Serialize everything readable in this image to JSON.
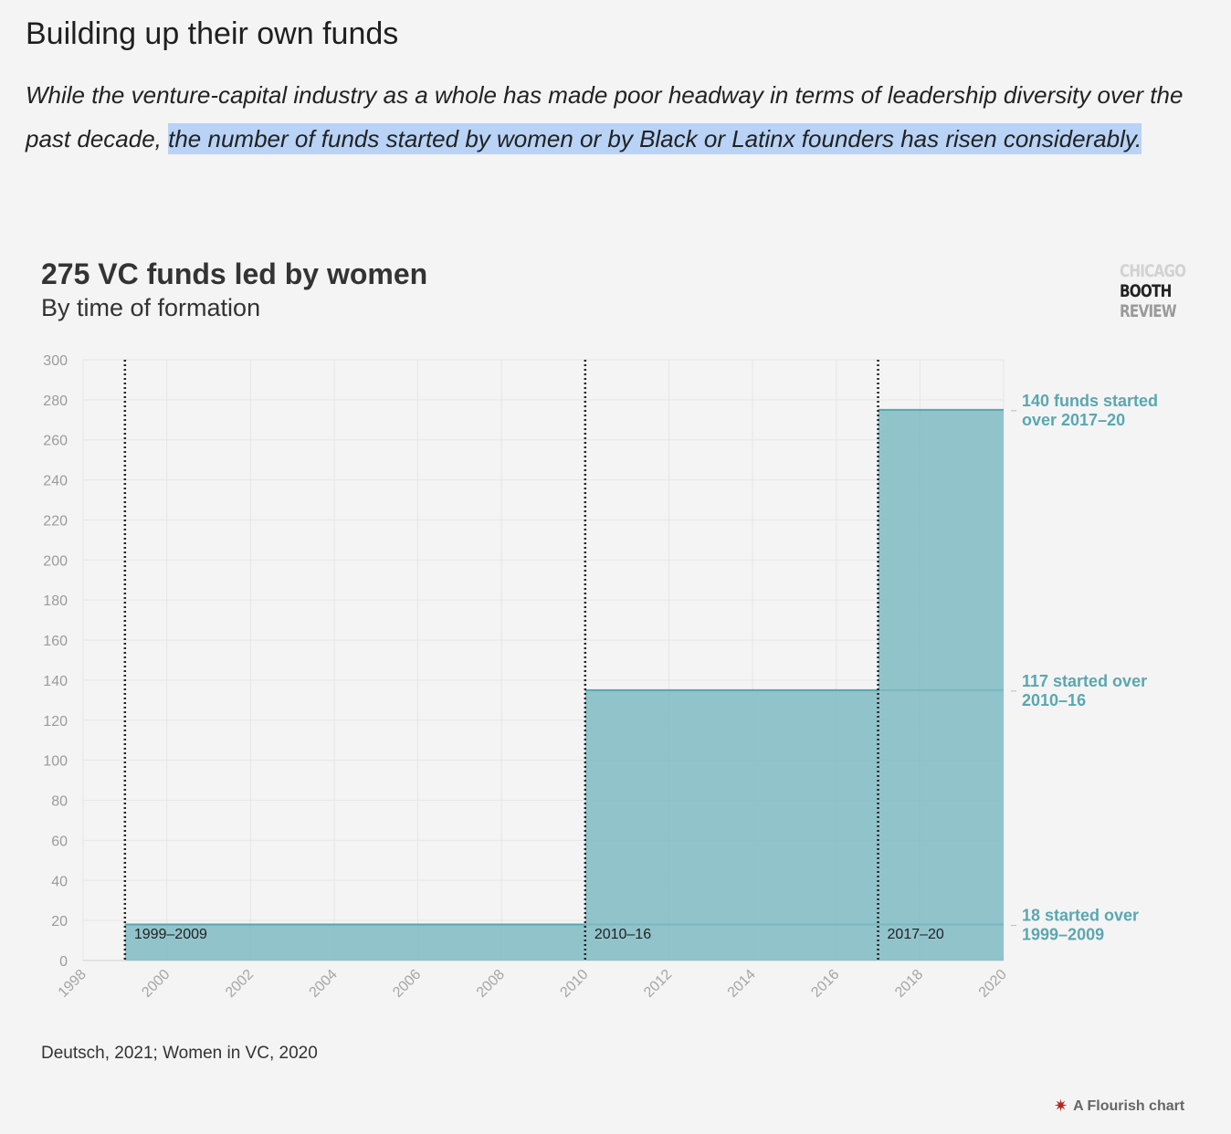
{
  "article": {
    "title": "Building up their own funds",
    "lede_plain": "While the venture-capital industry as a whole has made poor headway in terms of leadership diversity over the past decade, ",
    "lede_highlight": "the number of funds started by women or by Black or Latinx founders has risen considerably."
  },
  "logo": {
    "line1": "CHICAGO",
    "line2": "BOOTH",
    "line3": "REVIEW"
  },
  "chart_data": {
    "type": "area",
    "title": "275 VC funds led by women",
    "subtitle": "By time of formation",
    "xlabel": "",
    "ylabel": "",
    "xlim": [
      1998,
      2020
    ],
    "ylim": [
      0,
      300
    ],
    "x_ticks": [
      "1998",
      "2000",
      "2002",
      "2004",
      "2006",
      "2008",
      "2010",
      "2012",
      "2014",
      "2016",
      "2018",
      "2020"
    ],
    "y_ticks": [
      "0",
      "20",
      "40",
      "60",
      "80",
      "100",
      "120",
      "140",
      "160",
      "180",
      "200",
      "220",
      "240",
      "260",
      "280",
      "300"
    ],
    "grid": true,
    "series": [
      {
        "name": "1999–2009",
        "x_start": 1999,
        "x_end": 2009,
        "value": 18
      },
      {
        "name": "2010–16",
        "x_start": 2010,
        "x_end": 2016,
        "value": 135
      },
      {
        "name": "2017–20",
        "x_start": 2017,
        "x_end": 2020,
        "value": 275
      }
    ],
    "period_lines": [
      1999,
      2010,
      2017
    ],
    "annotations": [
      {
        "value": 275,
        "lines": [
          "140 funds started",
          "over 2017–20"
        ]
      },
      {
        "value": 135,
        "lines": [
          "117 started over",
          "2010–16"
        ]
      },
      {
        "value": 18,
        "lines": [
          "18 started over",
          "1999–2009"
        ]
      }
    ],
    "colors": {
      "fill": "#7fbac3",
      "stroke": "#5aa5ae",
      "label": "#5aa7b0"
    }
  },
  "footer": {
    "source": "Deutsch, 2021; Women in VC, 2020",
    "credit": "A Flourish chart"
  }
}
